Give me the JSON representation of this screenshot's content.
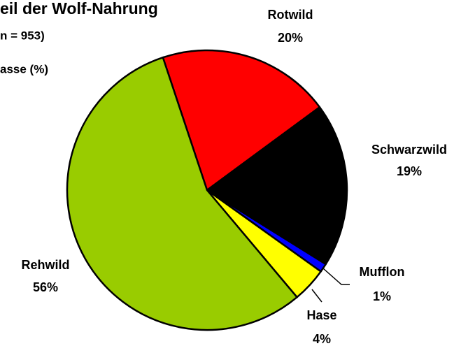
{
  "chart_data": {
    "type": "pie",
    "title": "eil der Wolf-Nahrung",
    "subtitle": "n = 953)",
    "annotations": [
      "asse (%)"
    ],
    "categories": [
      "Rotwild",
      "Schwarzwild",
      "Mufflon",
      "Hase",
      "Rehwild"
    ],
    "values": [
      20,
      19,
      1,
      4,
      56
    ],
    "value_labels": [
      "20%",
      "19%",
      "1%",
      "4%",
      "56%"
    ],
    "colors": [
      "#ff0000",
      "#000000",
      "#0000ff",
      "#ffff00",
      "#99cc00"
    ]
  }
}
